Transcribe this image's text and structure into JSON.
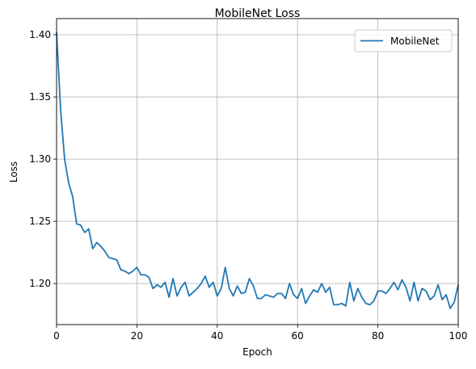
{
  "chart_data": {
    "type": "line",
    "title": "MobileNet Loss",
    "xlabel": "Epoch",
    "ylabel": "Loss",
    "xlim": [
      0,
      100
    ],
    "ylim": [
      1.167,
      1.413
    ],
    "xticks": [
      0,
      20,
      40,
      60,
      80,
      100
    ],
    "xtick_labels": [
      "0",
      "20",
      "40",
      "60",
      "80",
      "100"
    ],
    "yticks": [
      1.2,
      1.25,
      1.3,
      1.35,
      1.4
    ],
    "ytick_labels": [
      "1.20",
      "1.25",
      "1.30",
      "1.35",
      "1.40"
    ],
    "grid": true,
    "legend_position": "top-right",
    "series": [
      {
        "name": "MobileNet",
        "color": "#1f77b4",
        "x": [
          0,
          1,
          2,
          3,
          4,
          5,
          6,
          7,
          8,
          9,
          10,
          11,
          12,
          13,
          14,
          15,
          16,
          17,
          18,
          19,
          20,
          21,
          22,
          23,
          24,
          25,
          26,
          27,
          28,
          29,
          30,
          31,
          32,
          33,
          34,
          35,
          36,
          37,
          38,
          39,
          40,
          41,
          42,
          43,
          44,
          45,
          46,
          47,
          48,
          49,
          50,
          51,
          52,
          53,
          54,
          55,
          56,
          57,
          58,
          59,
          60,
          61,
          62,
          63,
          64,
          65,
          66,
          67,
          68,
          69,
          70,
          71,
          72,
          73,
          74,
          75,
          76,
          77,
          78,
          79,
          80,
          81,
          82,
          83,
          84,
          85,
          86,
          87,
          88,
          89,
          90,
          91,
          92,
          93,
          94,
          95,
          96,
          97,
          98,
          99,
          100
        ],
        "values": [
          1.402,
          1.34,
          1.3,
          1.281,
          1.27,
          1.248,
          1.247,
          1.241,
          1.244,
          1.228,
          1.233,
          1.23,
          1.226,
          1.221,
          1.22,
          1.219,
          1.211,
          1.21,
          1.208,
          1.21,
          1.213,
          1.207,
          1.207,
          1.205,
          1.196,
          1.199,
          1.197,
          1.201,
          1.189,
          1.204,
          1.19,
          1.197,
          1.201,
          1.19,
          1.193,
          1.196,
          1.2,
          1.206,
          1.197,
          1.201,
          1.19,
          1.196,
          1.213,
          1.196,
          1.19,
          1.198,
          1.192,
          1.193,
          1.204,
          1.198,
          1.188,
          1.188,
          1.191,
          1.19,
          1.189,
          1.192,
          1.192,
          1.188,
          1.2,
          1.191,
          1.188,
          1.196,
          1.184,
          1.19,
          1.195,
          1.193,
          1.2,
          1.193,
          1.197,
          1.183,
          1.183,
          1.184,
          1.182,
          1.201,
          1.186,
          1.196,
          1.189,
          1.184,
          1.183,
          1.186,
          1.194,
          1.194,
          1.192,
          1.196,
          1.201,
          1.195,
          1.203,
          1.197,
          1.186,
          1.201,
          1.186,
          1.196,
          1.194,
          1.187,
          1.19,
          1.199,
          1.187,
          1.191,
          1.18,
          1.185,
          1.199
        ]
      }
    ]
  }
}
